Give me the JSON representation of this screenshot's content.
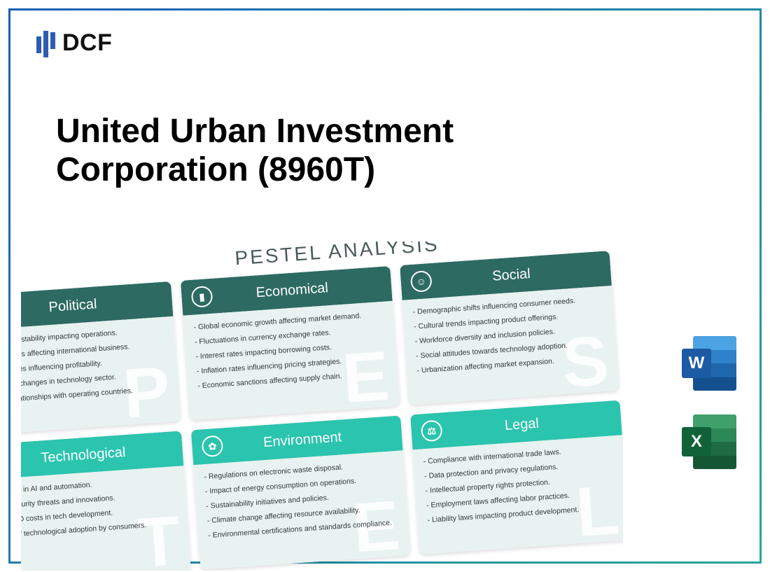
{
  "logo": {
    "text": "DCF"
  },
  "title": "United Urban Investment Corporation (8960T)",
  "pestel": {
    "heading": "PESTEL ANALYSIS",
    "colors": {
      "row1_header": "#2d6a62",
      "row2_header": "#2bc4ae",
      "body_bg": "#e8f2f0",
      "bg_letter": "rgba(255,255,255,0.85)"
    },
    "cards": [
      {
        "title": "Political",
        "icon": "⚖",
        "letter": "P",
        "items": [
          "Government stability impacting operations.",
          "Trade policies affecting international business.",
          "Taxation rates influencing profitability.",
          "Regulatory changes in technology sector.",
          "Political relationships with operating countries."
        ]
      },
      {
        "title": "Economical",
        "icon": "▮",
        "letter": "E",
        "items": [
          "Global economic growth affecting market demand.",
          "Fluctuations in currency exchange rates.",
          "Interest rates impacting borrowing costs.",
          "Inflation rates influencing pricing strategies.",
          "Economic sanctions affecting supply chain."
        ]
      },
      {
        "title": "Social",
        "icon": "☺",
        "letter": "S",
        "items": [
          "Demographic shifts influencing consumer needs.",
          "Cultural trends impacting product offerings.",
          "Workforce diversity and inclusion policies.",
          "Social attitudes towards technology adoption.",
          "Urbanization affecting market expansion."
        ]
      },
      {
        "title": "Technological",
        "icon": "⚙",
        "letter": "T",
        "items": [
          "Advances in AI and automation.",
          "Cybersecurity threats and innovations.",
          "High R&D costs in tech development.",
          "Speed of technological adoption by consumers."
        ]
      },
      {
        "title": "Environment",
        "icon": "✿",
        "letter": "E",
        "items": [
          "Regulations on electronic waste disposal.",
          "Impact of energy consumption on operations.",
          "Sustainability initiatives and policies.",
          "Climate change affecting resource availability.",
          "Environmental certifications and standards compliance."
        ]
      },
      {
        "title": "Legal",
        "icon": "⚖",
        "letter": "L",
        "items": [
          "Compliance with international trade laws.",
          "Data protection and privacy regulations.",
          "Intellectual property rights protection.",
          "Employment laws affecting labor practices.",
          "Liability laws impacting product development."
        ]
      }
    ]
  },
  "file_icons": {
    "word": {
      "letter": "W",
      "badge_color": "#1c5aa3"
    },
    "excel": {
      "letter": "X",
      "badge_color": "#116139"
    }
  }
}
